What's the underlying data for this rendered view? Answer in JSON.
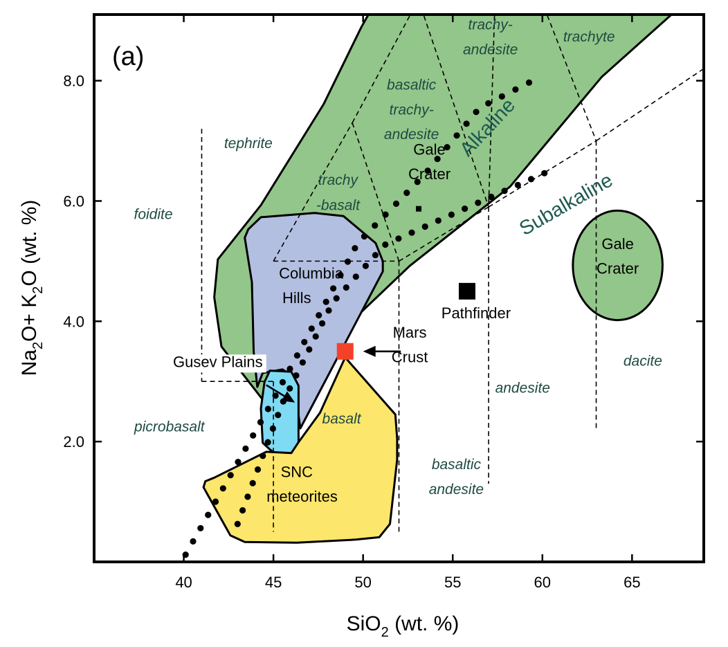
{
  "chart_data": {
    "type": "scatter",
    "panel_label": "(a)",
    "xlabel": {
      "main": "SiO",
      "sub": "2",
      "rest": " (wt. %)"
    },
    "ylabel": {
      "a": "Na",
      "a_sub": "2",
      "b": "O+ K",
      "b_sub": "2",
      "c": "O (wt. %)"
    },
    "xlim": [
      35,
      69
    ],
    "ylim": [
      0,
      9.1
    ],
    "xticks": [
      {
        "value": 40,
        "label": "40"
      },
      {
        "value": 45,
        "label": "45"
      },
      {
        "value": 50,
        "label": "50"
      },
      {
        "value": 55,
        "label": "55"
      },
      {
        "value": 60,
        "label": "60"
      },
      {
        "value": 65,
        "label": "65"
      }
    ],
    "yticks": [
      {
        "value": 2,
        "label": "2.0"
      },
      {
        "value": 4,
        "label": "4.0"
      },
      {
        "value": 6,
        "label": "6.0"
      },
      {
        "value": 8,
        "label": "8.0"
      }
    ],
    "colors": {
      "gale": "#93c68a",
      "columbia": "#b3bfe0",
      "gusev": "#7fdaf3",
      "snc": "#fce66b",
      "mars_crust": "#f4412a",
      "pathfinder": "#000000",
      "field_text": "#1e4a42",
      "trend_text": "#1e5a50"
    },
    "regions": [
      {
        "name": "gale-crater-field",
        "fill": "#93c68a",
        "points": [
          [
            41.9,
            5.03
          ],
          [
            44.3,
            5.93
          ],
          [
            47.8,
            7.61
          ],
          [
            49.9,
            8.89
          ],
          [
            50.3,
            9.1
          ],
          [
            67.2,
            9.1
          ],
          [
            63.3,
            8.06
          ],
          [
            58.2,
            6.24
          ],
          [
            52.6,
            4.92
          ],
          [
            49.5,
            4.04
          ],
          [
            46.9,
            2.72
          ],
          [
            44.5,
            2.66
          ],
          [
            42.1,
            3.58
          ],
          [
            41.7,
            4.4
          ]
        ]
      },
      {
        "name": "columbia-hills",
        "fill": "#b3bfe0",
        "points": [
          [
            43.6,
            5.53
          ],
          [
            44.3,
            5.73
          ],
          [
            47.3,
            5.8
          ],
          [
            48.9,
            5.75
          ],
          [
            50.7,
            5.3
          ],
          [
            51.1,
            5.0
          ],
          [
            51.1,
            4.83
          ],
          [
            46.5,
            2.22
          ],
          [
            46.1,
            3.08
          ],
          [
            45.5,
            3.2
          ],
          [
            44.4,
            3.14
          ],
          [
            44.1,
            2.91
          ],
          [
            43.9,
            3.49
          ],
          [
            43.8,
            4.65
          ],
          [
            43.4,
            5.39
          ]
        ]
      },
      {
        "name": "gusev-plains",
        "fill": "#7fdaf3",
        "points": [
          [
            44.8,
            3.18
          ],
          [
            46.0,
            3.16
          ],
          [
            46.4,
            2.93
          ],
          [
            46.4,
            2.46
          ],
          [
            46.4,
            1.93
          ],
          [
            46.0,
            1.74
          ],
          [
            45.5,
            1.71
          ],
          [
            44.8,
            1.87
          ],
          [
            44.4,
            1.98
          ],
          [
            44.3,
            2.55
          ],
          [
            44.5,
            2.99
          ]
        ]
      },
      {
        "name": "snc-meteorites",
        "fill": "#fce66b",
        "points": [
          [
            49.0,
            3.4
          ],
          [
            51.8,
            2.45
          ],
          [
            51.9,
            2.05
          ],
          [
            51.9,
            1.7
          ],
          [
            51.5,
            0.63
          ],
          [
            50.9,
            0.41
          ],
          [
            49.6,
            0.37
          ],
          [
            46.3,
            0.32
          ],
          [
            43.4,
            0.33
          ],
          [
            42.6,
            0.44
          ],
          [
            41.7,
            0.92
          ],
          [
            41.1,
            1.24
          ],
          [
            41.2,
            1.34
          ],
          [
            41.7,
            1.4
          ],
          [
            44.6,
            1.83
          ],
          [
            46.0,
            1.81
          ],
          [
            46.4,
            1.99
          ],
          [
            47.6,
            2.48
          ]
        ]
      },
      {
        "name": "gale-crater-circle",
        "fill": "#93c68a",
        "ellipse": {
          "cx": 64.2,
          "cy": 4.93,
          "rx": 2.5,
          "ry": 0.91
        }
      }
    ],
    "tas_field_lines": [
      [
        [
          41,
          7.2
        ],
        [
          41,
          3
        ]
      ],
      [
        [
          41,
          3
        ],
        [
          45,
          3
        ]
      ],
      [
        [
          45,
          3
        ],
        [
          45,
          0.5
        ]
      ],
      [
        [
          45,
          5
        ],
        [
          49.4,
          7.3
        ]
      ],
      [
        [
          45,
          5
        ],
        [
          52,
          5
        ]
      ],
      [
        [
          52,
          5
        ],
        [
          52,
          0.5
        ]
      ],
      [
        [
          49.4,
          7.3
        ],
        [
          52,
          5
        ]
      ],
      [
        [
          49.4,
          7.3
        ],
        [
          53,
          9.3
        ]
      ],
      [
        [
          52,
          5
        ],
        [
          57,
          5.9
        ]
      ],
      [
        [
          57,
          5.9
        ],
        [
          57,
          1.3
        ]
      ],
      [
        [
          57,
          5.9
        ],
        [
          63,
          7
        ]
      ],
      [
        [
          63,
          7
        ],
        [
          63,
          2.2
        ]
      ],
      [
        [
          53,
          9.3
        ],
        [
          57.6,
          11.7
        ]
      ],
      [
        [
          57.6,
          11.7
        ],
        [
          57,
          5.9
        ]
      ],
      [
        [
          52.8,
          9.6
        ],
        [
          57,
          5.9
        ]
      ],
      [
        [
          59.6,
          9.6
        ],
        [
          63,
          7
        ]
      ],
      [
        [
          63,
          7
        ],
        [
          69,
          8.2
        ]
      ]
    ],
    "alkaline_trend": [
      [
        40.1,
        0.12
      ],
      [
        45,
        2.7
      ],
      [
        49.7,
        5.3
      ],
      [
        53.4,
        6.43
      ],
      [
        56.5,
        7.55
      ],
      [
        59.8,
        8.05
      ]
    ],
    "subalkaline_trend": [
      [
        43.0,
        0.63
      ],
      [
        45.5,
        2.64
      ],
      [
        48.3,
        4.31
      ],
      [
        51.2,
        5.27
      ],
      [
        55.5,
        5.85
      ],
      [
        60.4,
        6.5
      ]
    ],
    "points": [
      {
        "name": "Mars Crust",
        "x": 49.0,
        "y": 3.5,
        "marker": "square",
        "color": "#f4412a"
      },
      {
        "name": "Pathfinder",
        "x": 55.8,
        "y": 4.5,
        "marker": "square",
        "color": "#000000"
      }
    ],
    "field_labels": [
      {
        "text": "foidite",
        "x": 38.3,
        "y": 5.7
      },
      {
        "text": "tephrite",
        "x": 43.6,
        "y": 6.88
      },
      {
        "text": "picrobasalt",
        "x": 39.2,
        "y": 2.17
      },
      {
        "text": "basalt",
        "x": 48.8,
        "y": 2.3
      },
      {
        "text": "trachy",
        "x": 48.6,
        "y": 6.27
      },
      {
        "text": "-basalt",
        "x": 48.6,
        "y": 5.85
      },
      {
        "text": "basaltic",
        "x": 52.7,
        "y": 7.85
      },
      {
        "text": "trachy-",
        "x": 52.7,
        "y": 7.44
      },
      {
        "text": "andesite",
        "x": 52.7,
        "y": 7.03
      },
      {
        "text": "trachy-",
        "x": 57.1,
        "y": 8.85
      },
      {
        "text": "andesite",
        "x": 57.1,
        "y": 8.44
      },
      {
        "text": "trachyte",
        "x": 62.6,
        "y": 8.65
      },
      {
        "text": "basaltic",
        "x": 55.2,
        "y": 1.54
      },
      {
        "text": "andesite",
        "x": 55.2,
        "y": 1.13
      },
      {
        "text": "andesite",
        "x": 58.9,
        "y": 2.81
      },
      {
        "text": "dacite",
        "x": 65.6,
        "y": 3.26
      }
    ],
    "region_labels": [
      {
        "text": "Gale",
        "x": 53.7,
        "y": 6.77
      },
      {
        "text": "Crater",
        "x": 53.7,
        "y": 6.36
      },
      {
        "text": "Columbia",
        "x": 47.1,
        "y": 4.71
      },
      {
        "text": "Hills",
        "x": 46.3,
        "y": 4.3
      },
      {
        "text": "Gusev Plains",
        "x": 41.9,
        "y": 3.24
      },
      {
        "text": "Mars",
        "x": 52.6,
        "y": 3.73
      },
      {
        "text": "Crust",
        "x": 52.6,
        "y": 3.32
      },
      {
        "text": "Pathfinder",
        "x": 56.3,
        "y": 4.05
      },
      {
        "text": "SNC",
        "x": 46.3,
        "y": 1.41
      },
      {
        "text": "meteorites",
        "x": 46.6,
        "y": 1.0
      },
      {
        "text": "Gale",
        "x": 64.2,
        "y": 5.2
      },
      {
        "text": "Crater",
        "x": 64.2,
        "y": 4.79
      }
    ],
    "trend_labels": [
      {
        "text": "Alkaline",
        "x": 57.2,
        "y": 7.15,
        "angle": -47
      },
      {
        "text": "Subalkaline",
        "x": 61.5,
        "y": 5.85,
        "angle": -30
      }
    ],
    "arrows": [
      {
        "from": [
          44.6,
          2.94
        ],
        "to": [
          46.2,
          2.65
        ]
      },
      {
        "from": [
          52.1,
          3.5
        ],
        "to": [
          50.0,
          3.5
        ]
      }
    ]
  }
}
